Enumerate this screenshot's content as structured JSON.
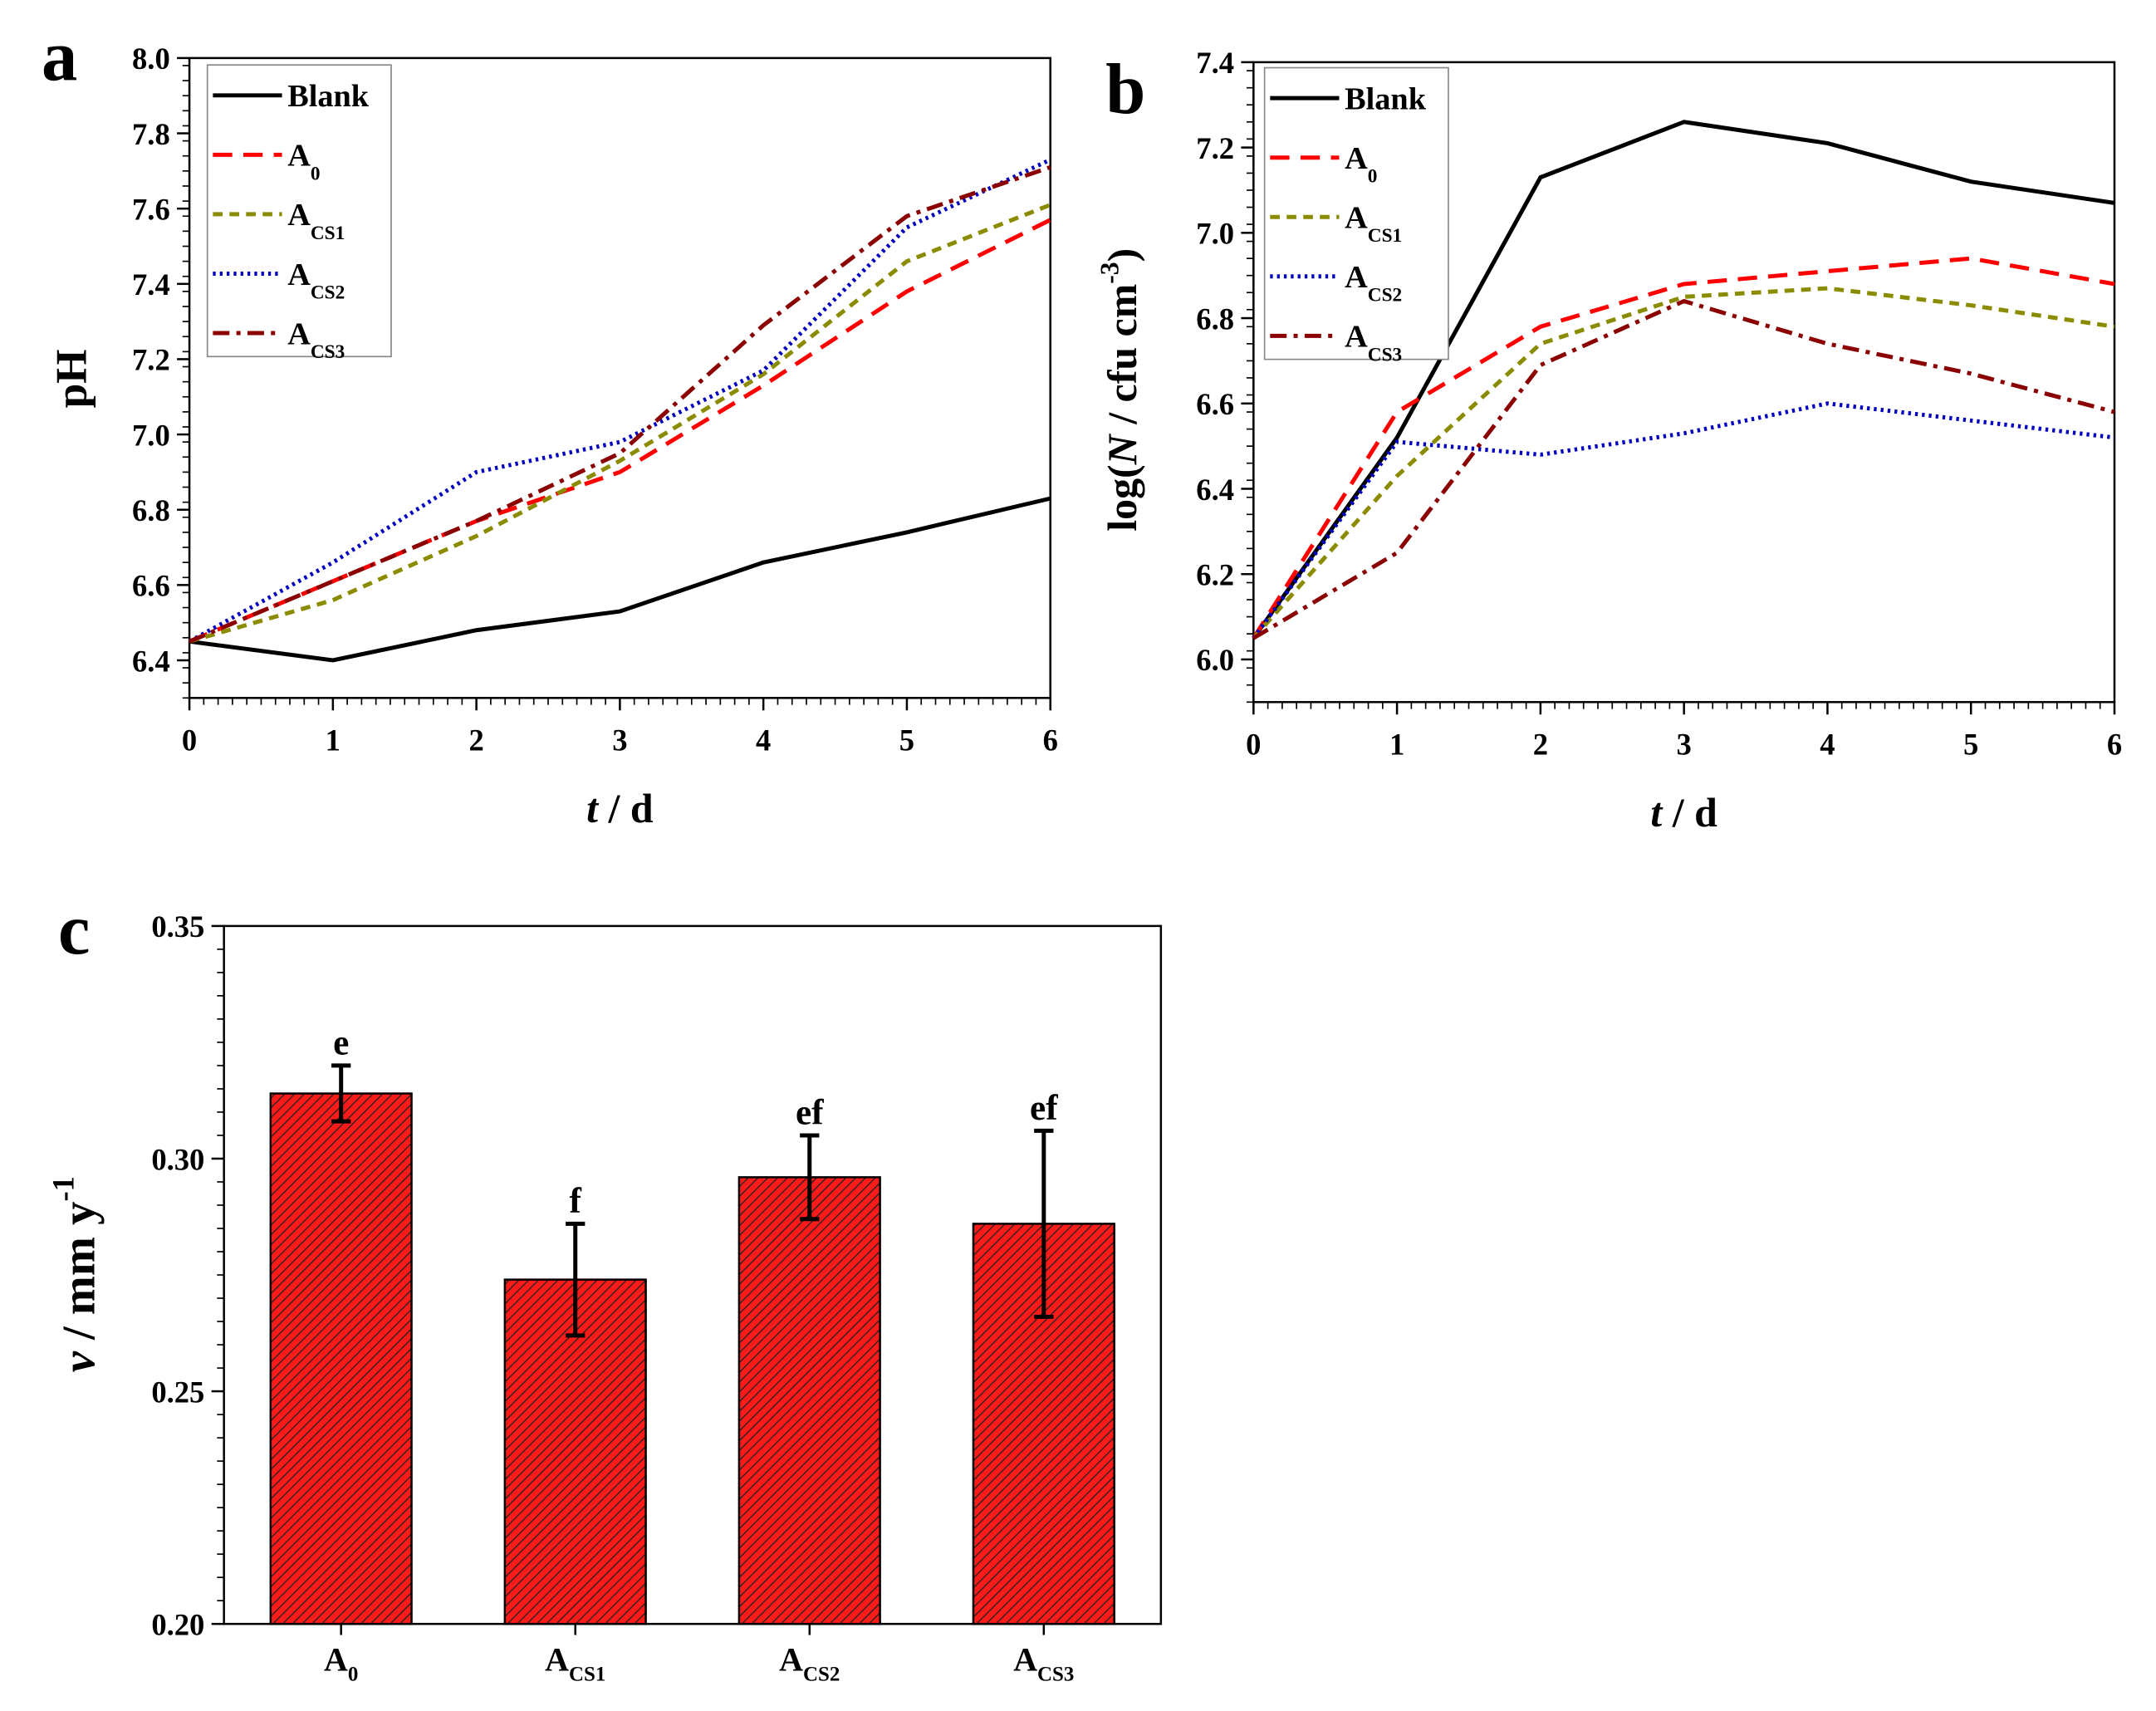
{
  "chart_data": [
    {
      "panel": "a",
      "type": "line",
      "xlabel_italic": "t",
      "xlabel_rest": " / d",
      "ylabel": "pH",
      "x": [
        0,
        1,
        2,
        3,
        4,
        5,
        6
      ],
      "xlim": [
        0,
        6
      ],
      "ylim": [
        6.3,
        8.0
      ],
      "xticks": [
        "0",
        "1",
        "2",
        "3",
        "4",
        "5",
        "6"
      ],
      "yticks": [
        "6.4",
        "6.6",
        "6.8",
        "7.0",
        "7.2",
        "7.4",
        "7.6",
        "7.8",
        "8.0"
      ],
      "legend_position": "top-left",
      "series": [
        {
          "name": "Blank",
          "sub": "",
          "color": "#000000",
          "dash": "",
          "values": [
            6.45,
            6.4,
            6.48,
            6.53,
            6.66,
            6.74,
            6.83
          ]
        },
        {
          "name": "A",
          "sub": "0",
          "color": "#ff0000",
          "dash": "14,8",
          "values": [
            6.45,
            6.61,
            6.77,
            6.9,
            7.13,
            7.38,
            7.57
          ]
        },
        {
          "name": "A",
          "sub": "CS1",
          "color": "#8b8b00",
          "dash": "7,5",
          "values": [
            6.45,
            6.56,
            6.73,
            6.93,
            7.16,
            7.46,
            7.61
          ]
        },
        {
          "name": "A",
          "sub": "CS2",
          "color": "#0000c0",
          "dash": "2,3",
          "values": [
            6.45,
            6.66,
            6.9,
            6.98,
            7.17,
            7.55,
            7.73
          ]
        },
        {
          "name": "A",
          "sub": "CS3",
          "color": "#8b0000",
          "dash": "12,5,3,5",
          "values": [
            6.45,
            6.61,
            6.77,
            6.95,
            7.29,
            7.58,
            7.71
          ]
        }
      ]
    },
    {
      "panel": "b",
      "type": "line",
      "xlabel_italic": "t",
      "xlabel_rest": " / d",
      "ylabel_pre": "log(",
      "ylabel_italic": "N",
      "ylabel_post": " / cfu cm",
      "ylabel_sup": "-3",
      "ylabel_close": ")",
      "x": [
        0,
        1,
        2,
        3,
        4,
        5,
        6
      ],
      "xlim": [
        0,
        6
      ],
      "ylim": [
        5.9,
        7.4
      ],
      "xticks": [
        "0",
        "1",
        "2",
        "3",
        "4",
        "5",
        "6"
      ],
      "yticks": [
        "6.0",
        "6.2",
        "6.4",
        "6.6",
        "6.8",
        "7.0",
        "7.2",
        "7.4"
      ],
      "legend_position": "top-left",
      "series": [
        {
          "name": "Blank",
          "sub": "",
          "color": "#000000",
          "dash": "",
          "values": [
            6.05,
            6.52,
            7.13,
            7.26,
            7.21,
            7.12,
            7.07
          ]
        },
        {
          "name": "A",
          "sub": "0",
          "color": "#ff0000",
          "dash": "14,8",
          "values": [
            6.05,
            6.58,
            6.78,
            6.88,
            6.91,
            6.94,
            6.88
          ]
        },
        {
          "name": "A",
          "sub": "CS1",
          "color": "#8b8b00",
          "dash": "7,5",
          "values": [
            6.05,
            6.43,
            6.74,
            6.85,
            6.87,
            6.83,
            6.78
          ]
        },
        {
          "name": "A",
          "sub": "CS2",
          "color": "#0000c0",
          "dash": "2,3",
          "values": [
            6.05,
            6.51,
            6.48,
            6.53,
            6.6,
            6.56,
            6.52
          ]
        },
        {
          "name": "A",
          "sub": "CS3",
          "color": "#8b0000",
          "dash": "12,5,3,5",
          "values": [
            6.05,
            6.25,
            6.69,
            6.84,
            6.74,
            6.67,
            6.58
          ]
        }
      ]
    },
    {
      "panel": "c",
      "type": "bar",
      "ylabel_italic": "v",
      "ylabel_rest": " / mm y",
      "ylabel_sup": "-1",
      "ylim": [
        0.2,
        0.35
      ],
      "yticks": [
        "0.20",
        "0.25",
        "0.30",
        "0.35"
      ],
      "categories": [
        {
          "name": "A",
          "sub": "0"
        },
        {
          "name": "A",
          "sub": "CS1"
        },
        {
          "name": "A",
          "sub": "CS2"
        },
        {
          "name": "A",
          "sub": "CS3"
        }
      ],
      "values": [
        0.314,
        0.274,
        0.296,
        0.286
      ],
      "errors": [
        0.006,
        0.012,
        0.009,
        0.02
      ],
      "significance": [
        "e",
        "f",
        "ef",
        "ef"
      ],
      "bar_color": "#ff1a1a"
    }
  ]
}
